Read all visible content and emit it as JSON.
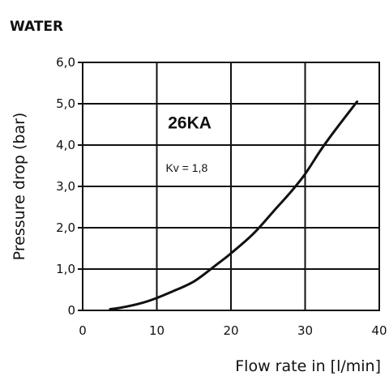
{
  "chart_data": {
    "type": "line",
    "heading": "WATER",
    "xlabel": "Flow rate in [l/min]",
    "ylabel": "Pressure drop (bar)",
    "xlim": [
      0,
      40
    ],
    "ylim": [
      0,
      6
    ],
    "x_ticks": [
      0,
      10,
      20,
      30,
      40
    ],
    "x_tick_labels": [
      "0",
      "10",
      "20",
      "30",
      "40"
    ],
    "y_ticks": [
      0,
      1,
      2,
      3,
      4,
      5,
      6
    ],
    "y_tick_labels": [
      "0",
      "1,0",
      "2,0",
      "3,0",
      "4,0",
      "5,0",
      "6,0"
    ],
    "grid": true,
    "series": [
      {
        "name": "26KA",
        "x": [
          3.7,
          5,
          8,
          10,
          12,
          15,
          18,
          20,
          23,
          26,
          28,
          30,
          32,
          34,
          37
        ],
        "y": [
          0.03,
          0.06,
          0.18,
          0.3,
          0.45,
          0.7,
          1.1,
          1.38,
          1.85,
          2.45,
          2.85,
          3.3,
          3.85,
          4.35,
          5.05
        ]
      }
    ],
    "annotations": [
      {
        "text": "26KA",
        "x": 11.5,
        "y": 4.4,
        "style": "big"
      },
      {
        "text": "Kv = 1,8",
        "x": 11.2,
        "y": 3.35,
        "style": "small"
      }
    ],
    "colors": {
      "line": "#111111",
      "grid": "#111111",
      "background": "#ffffff"
    }
  }
}
